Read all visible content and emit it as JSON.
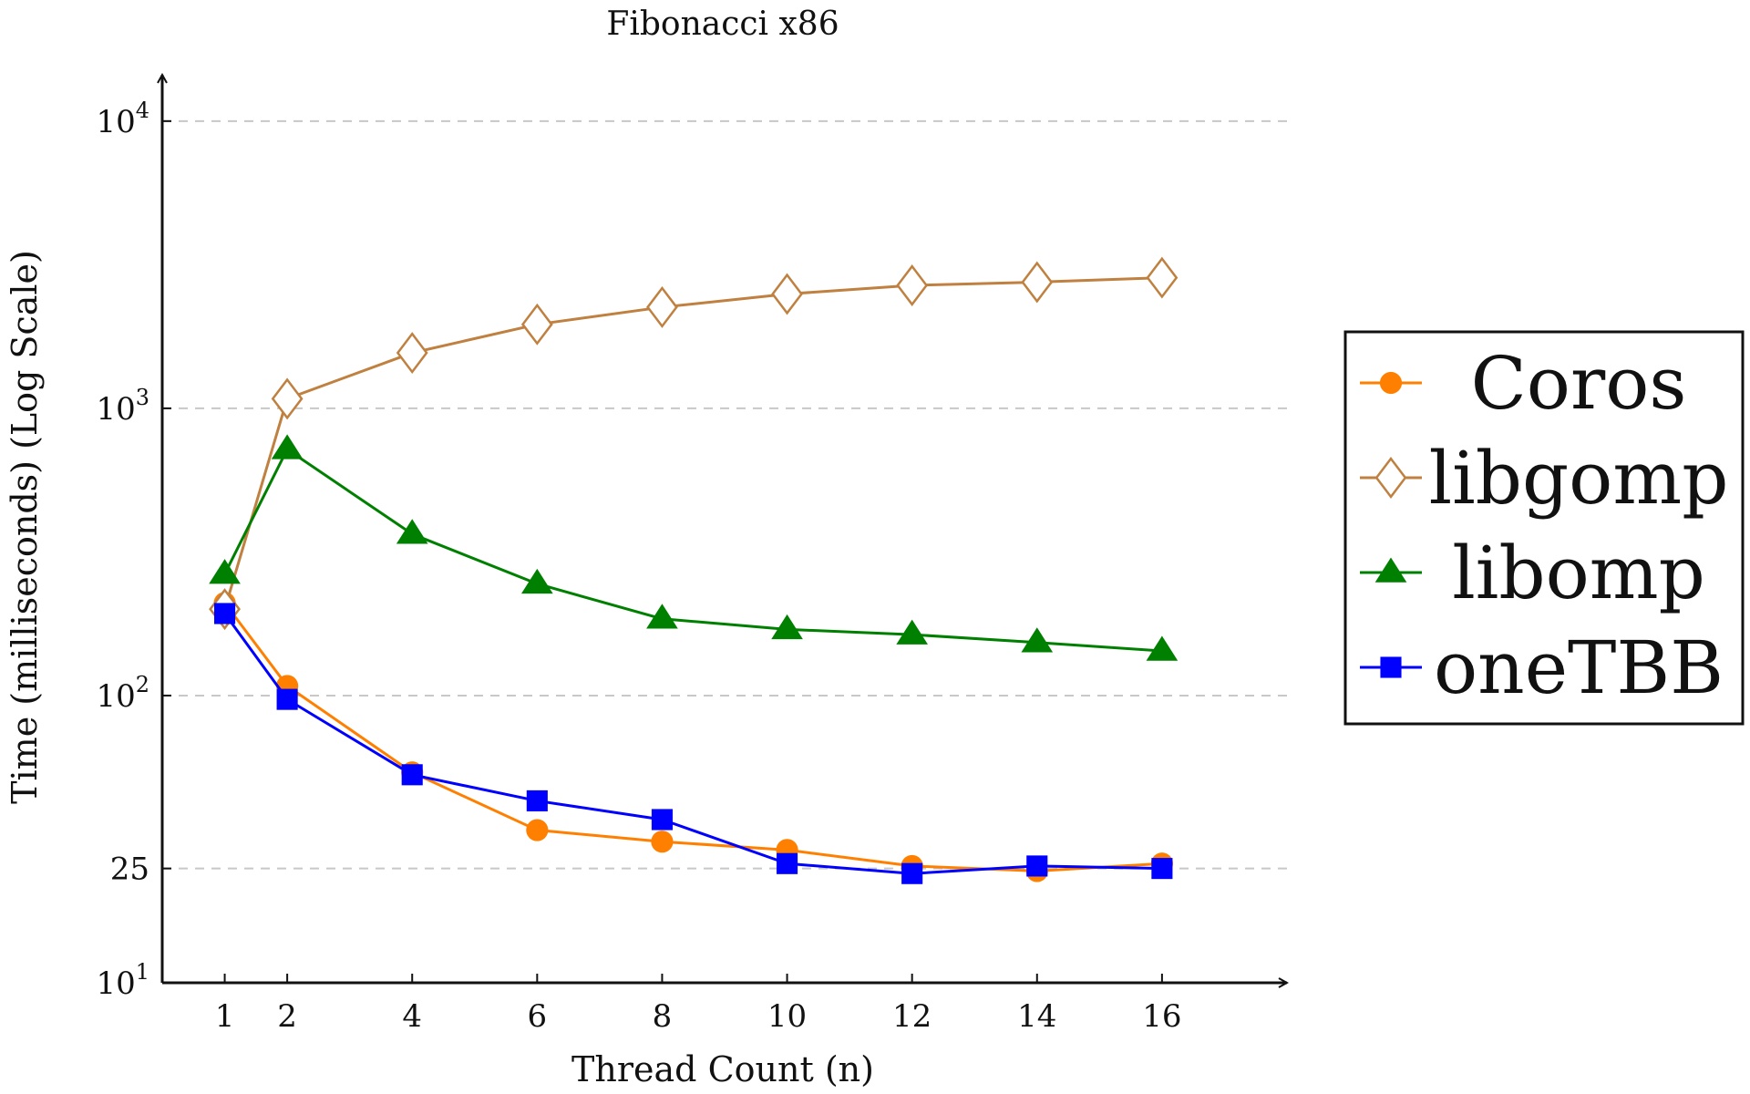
{
  "chart_data": {
    "type": "line",
    "title": "Fibonacci x86",
    "xlabel": "Thread Count (n)",
    "ylabel": "Time (milliseconds) (Log Scale)",
    "y_scale": "log",
    "ylim": [
      10,
      14500
    ],
    "xlim": [
      0,
      18
    ],
    "grid": "horizontal dashed",
    "legend_position": "right",
    "x_ticks": [
      1,
      2,
      4,
      6,
      8,
      10,
      12,
      14,
      16
    ],
    "y_ticks": [
      {
        "value": 10,
        "base": "10",
        "exp": "1"
      },
      {
        "value": 25,
        "base": "25",
        "exp": ""
      },
      {
        "value": 100,
        "base": "10",
        "exp": "2"
      },
      {
        "value": 1000,
        "base": "10",
        "exp": "3"
      },
      {
        "value": 10000,
        "base": "10",
        "exp": "4"
      }
    ],
    "x": [
      1,
      2,
      4,
      6,
      8,
      10,
      12,
      14,
      16
    ],
    "series": [
      {
        "name": "Coros",
        "color": "#ff8000",
        "marker": "circle",
        "values": [
          210,
          108,
          54,
          34,
          31,
          29,
          25.5,
          24.5,
          26
        ]
      },
      {
        "name": "libgomp",
        "color": "#bf8040",
        "marker": "diamond-open",
        "values": [
          200,
          1080,
          1560,
          1960,
          2250,
          2500,
          2680,
          2750,
          2850
        ]
      },
      {
        "name": "libomp",
        "color": "#008000",
        "marker": "triangle",
        "values": [
          265,
          720,
          365,
          245,
          185,
          170,
          163,
          153,
          143
        ]
      },
      {
        "name": "oneTBB",
        "color": "#0000ff",
        "marker": "square",
        "values": [
          193,
          97,
          53,
          43,
          37,
          26,
          24,
          25.5,
          25
        ]
      }
    ]
  }
}
